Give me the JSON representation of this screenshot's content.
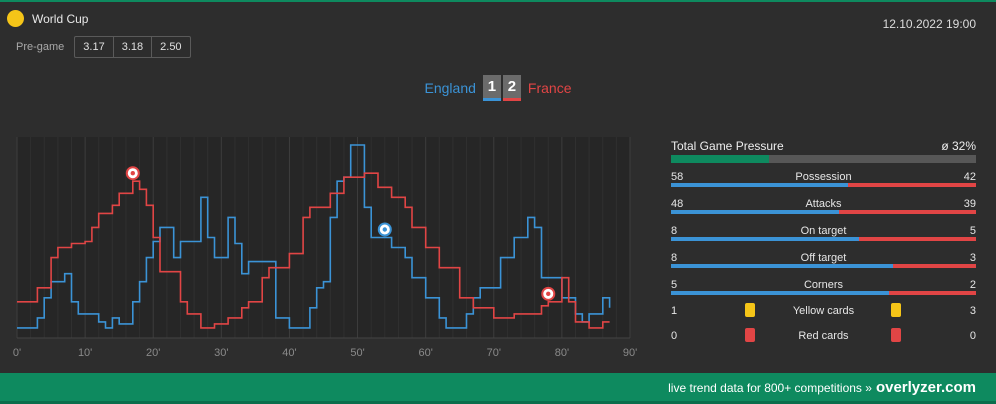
{
  "header": {
    "competition": "World Cup",
    "datetime": "12.10.2022 19:00",
    "pregame_label": "Pre-game",
    "odds": [
      "3.17",
      "3.18",
      "2.50"
    ]
  },
  "match": {
    "home_team": "England",
    "away_team": "France",
    "home_score": "1",
    "away_score": "2"
  },
  "colors": {
    "home": "#3b93d6",
    "away": "#e14545",
    "accent": "#0e8a5f",
    "background": "#2d2d2d"
  },
  "chart_data": {
    "type": "line",
    "xlabel": "",
    "ylabel": "",
    "x_ticks": [
      "0'",
      "10'",
      "20'",
      "30'",
      "40'",
      "50'",
      "60'",
      "70'",
      "80'",
      "90'"
    ],
    "xlim": [
      0,
      90
    ],
    "ylim": [
      0,
      100
    ],
    "grid": true,
    "series": [
      {
        "name": "England",
        "color": "#3b93d6",
        "points": [
          [
            0,
            5
          ],
          [
            3,
            5
          ],
          [
            3,
            10
          ],
          [
            4,
            10
          ],
          [
            4,
            20
          ],
          [
            5,
            20
          ],
          [
            5,
            28
          ],
          [
            7,
            28
          ],
          [
            7,
            32
          ],
          [
            8,
            32
          ],
          [
            8,
            18
          ],
          [
            9,
            18
          ],
          [
            9,
            12
          ],
          [
            12,
            12
          ],
          [
            12,
            8
          ],
          [
            13,
            8
          ],
          [
            13,
            5
          ],
          [
            14,
            5
          ],
          [
            14,
            10
          ],
          [
            15,
            10
          ],
          [
            15,
            7
          ],
          [
            17,
            7
          ],
          [
            17,
            18
          ],
          [
            18,
            18
          ],
          [
            18,
            28
          ],
          [
            19,
            28
          ],
          [
            19,
            40
          ],
          [
            20,
            40
          ],
          [
            20,
            48
          ],
          [
            21,
            48
          ],
          [
            21,
            55
          ],
          [
            23,
            55
          ],
          [
            23,
            40
          ],
          [
            24,
            40
          ],
          [
            24,
            48
          ],
          [
            27,
            48
          ],
          [
            27,
            70
          ],
          [
            28,
            70
          ],
          [
            28,
            50
          ],
          [
            29,
            50
          ],
          [
            29,
            40
          ],
          [
            31,
            40
          ],
          [
            31,
            60
          ],
          [
            32,
            60
          ],
          [
            32,
            47
          ],
          [
            33,
            47
          ],
          [
            33,
            32
          ],
          [
            34,
            32
          ],
          [
            34,
            38
          ],
          [
            38,
            38
          ],
          [
            38,
            10
          ],
          [
            40,
            10
          ],
          [
            40,
            5
          ],
          [
            43,
            5
          ],
          [
            43,
            15
          ],
          [
            44,
            15
          ],
          [
            44,
            25
          ],
          [
            45,
            25
          ],
          [
            45,
            28
          ],
          [
            46,
            28
          ],
          [
            46,
            60
          ],
          [
            47,
            60
          ],
          [
            47,
            78
          ],
          [
            48,
            78
          ],
          [
            48,
            80
          ],
          [
            49,
            80
          ],
          [
            49,
            96
          ],
          [
            51,
            96
          ],
          [
            51,
            65
          ],
          [
            52,
            65
          ],
          [
            52,
            50
          ],
          [
            55,
            50
          ],
          [
            55,
            45
          ],
          [
            57,
            45
          ],
          [
            57,
            40
          ],
          [
            58,
            40
          ],
          [
            58,
            30
          ],
          [
            60,
            30
          ],
          [
            60,
            20
          ],
          [
            62,
            20
          ],
          [
            62,
            10
          ],
          [
            63,
            10
          ],
          [
            63,
            5
          ],
          [
            66,
            5
          ],
          [
            66,
            12
          ],
          [
            67,
            12
          ],
          [
            67,
            20
          ],
          [
            68,
            20
          ],
          [
            68,
            25
          ],
          [
            71,
            25
          ],
          [
            71,
            40
          ],
          [
            73,
            40
          ],
          [
            73,
            50
          ],
          [
            75,
            50
          ],
          [
            75,
            60
          ],
          [
            76,
            60
          ],
          [
            76,
            55
          ],
          [
            77,
            55
          ],
          [
            77,
            30
          ],
          [
            80,
            30
          ],
          [
            80,
            20
          ],
          [
            82,
            20
          ],
          [
            82,
            12
          ],
          [
            83,
            12
          ],
          [
            83,
            8
          ],
          [
            84,
            8
          ],
          [
            84,
            12
          ],
          [
            86,
            12
          ],
          [
            86,
            20
          ],
          [
            87,
            20
          ],
          [
            87,
            15
          ]
        ]
      },
      {
        "name": "France",
        "color": "#e14545",
        "points": [
          [
            0,
            18
          ],
          [
            3,
            18
          ],
          [
            3,
            25
          ],
          [
            5,
            25
          ],
          [
            5,
            40
          ],
          [
            6,
            40
          ],
          [
            6,
            45
          ],
          [
            8,
            45
          ],
          [
            8,
            47
          ],
          [
            10,
            47
          ],
          [
            10,
            48
          ],
          [
            11,
            48
          ],
          [
            11,
            55
          ],
          [
            12,
            55
          ],
          [
            12,
            62
          ],
          [
            14,
            62
          ],
          [
            14,
            66
          ],
          [
            15,
            66
          ],
          [
            15,
            72
          ],
          [
            17,
            72
          ],
          [
            17,
            78
          ],
          [
            18,
            78
          ],
          [
            18,
            74
          ],
          [
            19,
            74
          ],
          [
            19,
            66
          ],
          [
            20,
            66
          ],
          [
            20,
            50
          ],
          [
            21,
            50
          ],
          [
            21,
            33
          ],
          [
            24,
            33
          ],
          [
            24,
            18
          ],
          [
            25,
            18
          ],
          [
            25,
            12
          ],
          [
            27,
            12
          ],
          [
            27,
            5
          ],
          [
            29,
            5
          ],
          [
            29,
            7
          ],
          [
            31,
            7
          ],
          [
            31,
            10
          ],
          [
            33,
            10
          ],
          [
            33,
            15
          ],
          [
            34,
            15
          ],
          [
            34,
            18
          ],
          [
            36,
            18
          ],
          [
            36,
            30
          ],
          [
            37,
            30
          ],
          [
            37,
            35
          ],
          [
            40,
            35
          ],
          [
            40,
            42
          ],
          [
            42,
            42
          ],
          [
            42,
            60
          ],
          [
            43,
            60
          ],
          [
            43,
            65
          ],
          [
            46,
            65
          ],
          [
            46,
            72
          ],
          [
            48,
            72
          ],
          [
            48,
            80
          ],
          [
            51,
            80
          ],
          [
            51,
            82
          ],
          [
            53,
            82
          ],
          [
            53,
            75
          ],
          [
            55,
            75
          ],
          [
            55,
            70
          ],
          [
            57,
            70
          ],
          [
            57,
            65
          ],
          [
            58,
            65
          ],
          [
            58,
            55
          ],
          [
            60,
            55
          ],
          [
            60,
            45
          ],
          [
            62,
            45
          ],
          [
            62,
            35
          ],
          [
            65,
            35
          ],
          [
            65,
            20
          ],
          [
            67,
            20
          ],
          [
            67,
            15
          ],
          [
            70,
            15
          ],
          [
            70,
            10
          ],
          [
            73,
            10
          ],
          [
            73,
            12
          ],
          [
            77,
            12
          ],
          [
            77,
            16
          ],
          [
            78,
            16
          ],
          [
            78,
            18
          ],
          [
            80,
            18
          ],
          [
            80,
            30
          ],
          [
            81,
            30
          ],
          [
            81,
            18
          ],
          [
            82,
            18
          ],
          [
            82,
            8
          ],
          [
            84,
            8
          ],
          [
            84,
            5
          ],
          [
            86,
            5
          ],
          [
            86,
            8
          ],
          [
            87,
            8
          ]
        ]
      }
    ],
    "goals": [
      {
        "team": "France",
        "minute": 17
      },
      {
        "team": "England",
        "minute": 54
      },
      {
        "team": "France",
        "minute": 78
      }
    ]
  },
  "stats": {
    "pressure_label": "Total Game Pressure",
    "pressure_value": "ø 32%",
    "pressure_fraction": 0.32,
    "rows": [
      {
        "label": "Possession",
        "home": "58",
        "away": "42"
      },
      {
        "label": "Attacks",
        "home": "48",
        "away": "39"
      },
      {
        "label": "On target",
        "home": "8",
        "away": "5"
      },
      {
        "label": "Off target",
        "home": "8",
        "away": "3"
      },
      {
        "label": "Corners",
        "home": "5",
        "away": "2"
      }
    ],
    "yellow": {
      "label": "Yellow cards",
      "home": "1",
      "away": "3",
      "color": "#f5c518"
    },
    "red": {
      "label": "Red cards",
      "home": "0",
      "away": "0",
      "color": "#e14545"
    }
  },
  "footer": {
    "tagline": "live trend data for 800+ competitions »",
    "brand": "overlyzer.com"
  }
}
